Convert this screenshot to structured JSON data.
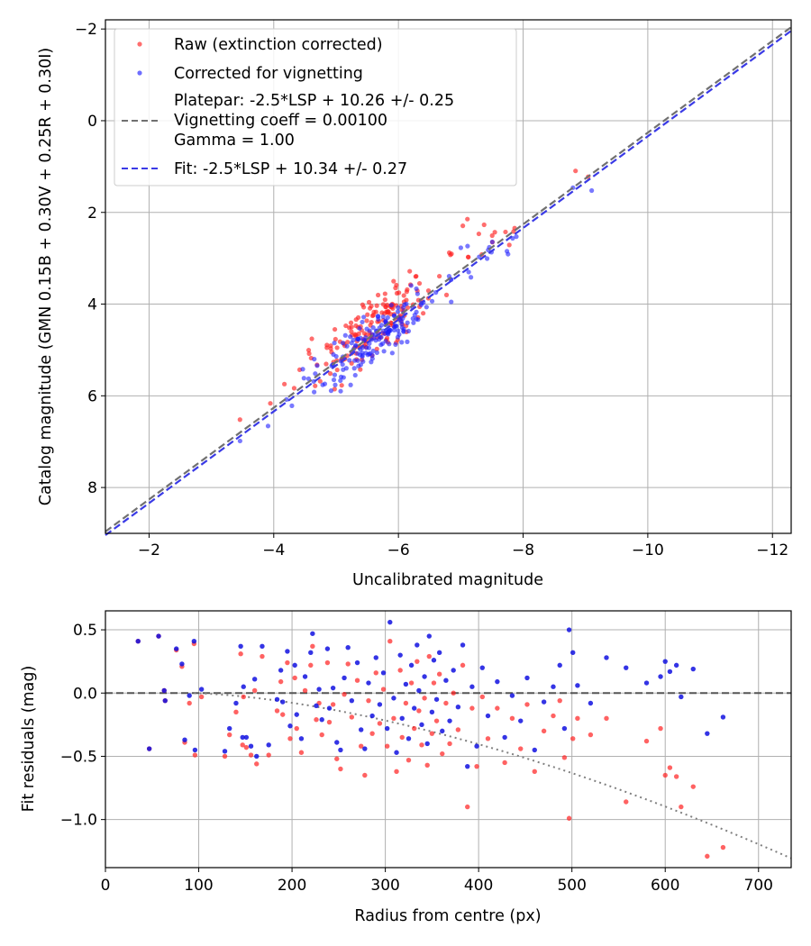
{
  "chart_data": [
    {
      "type": "scatter",
      "panel": "top",
      "xlabel": "Uncalibrated magnitude",
      "ylabel": "Catalog magnitude (GMN 0.15B + 0.30V + 0.25R + 0.30I)",
      "xlim": [
        -1.3,
        -12.3
      ],
      "ylim": [
        9.0,
        -2.2
      ],
      "x_ticks": [
        -2,
        -4,
        -6,
        -8,
        -10,
        -12
      ],
      "x_tick_labels": [
        "−2",
        "−4",
        "−6",
        "−8",
        "−10",
        "−12"
      ],
      "y_ticks": [
        -2,
        0,
        2,
        4,
        6,
        8
      ],
      "y_tick_labels": [
        "−2",
        "0",
        "2",
        "4",
        "6",
        "8"
      ],
      "grid": true,
      "legend_position": "top-left",
      "legend": {
        "raw": "Raw (extinction corrected)",
        "corrected": "Corrected for vignetting",
        "platepar_lines": [
          "Platepar: -2.5*LSP + 10.26 +/- 0.25",
          "Vignetting coeff = 0.00100",
          "Gamma = 1.00"
        ],
        "fit": "Fit: -2.5*LSP + 10.34 +/- 0.27"
      },
      "lines": [
        {
          "name": "platepar",
          "slope_lsp": -2.5,
          "zero_point": 10.26,
          "color": "#707070",
          "style": "dashed"
        },
        {
          "name": "fit",
          "slope_lsp": -2.5,
          "zero_point": 10.34,
          "color": "#3a3ae6",
          "style": "dashed"
        }
      ],
      "series": [
        {
          "name": "Raw (extinction corrected)",
          "color": "#ff2020",
          "note": "points generated from residual relation"
        },
        {
          "name": "Corrected for vignetting",
          "color": "#2020ff"
        }
      ]
    },
    {
      "type": "scatter",
      "panel": "bottom",
      "xlabel": "Radius from centre (px)",
      "ylabel": "Fit residuals (mag)",
      "xlim": [
        0,
        735
      ],
      "ylim": [
        -1.38,
        0.65
      ],
      "x_ticks": [
        0,
        100,
        200,
        300,
        400,
        500,
        600,
        700
      ],
      "x_tick_labels": [
        "0",
        "100",
        "200",
        "300",
        "400",
        "500",
        "600",
        "700"
      ],
      "y_ticks": [
        0.5,
        0.0,
        -0.5,
        -1.0
      ],
      "y_tick_labels": [
        "0.5",
        "0.0",
        "−0.5",
        "−1.0"
      ],
      "grid": true,
      "zero_line": 0.0,
      "vignetting_curve": {
        "coeff": 0.001,
        "color": "#808080",
        "style": "dotted"
      },
      "series": [
        {
          "name": "Raw",
          "color": "#ff2020"
        },
        {
          "name": "Corrected",
          "color": "#1010e0"
        }
      ],
      "corrected_points": [
        [
          35,
          0.41
        ],
        [
          47,
          -0.44
        ],
        [
          57,
          0.45
        ],
        [
          63,
          0.02
        ],
        [
          64,
          -0.06
        ],
        [
          76,
          0.35
        ],
        [
          82,
          0.23
        ],
        [
          85,
          -0.37
        ],
        [
          90,
          -0.02
        ],
        [
          95,
          0.41
        ],
        [
          96,
          -0.45
        ],
        [
          103,
          0.03
        ],
        [
          128,
          -0.46
        ],
        [
          133,
          -0.28
        ],
        [
          140,
          -0.08
        ],
        [
          145,
          0.37
        ],
        [
          147,
          -0.35
        ],
        [
          148,
          0.05
        ],
        [
          151,
          -0.35
        ],
        [
          156,
          -0.42
        ],
        [
          160,
          0.11
        ],
        [
          162,
          -0.5
        ],
        [
          168,
          0.37
        ],
        [
          175,
          -0.41
        ],
        [
          184,
          -0.05
        ],
        [
          188,
          0.18
        ],
        [
          190,
          -0.07
        ],
        [
          195,
          0.33
        ],
        [
          198,
          -0.26
        ],
        [
          203,
          0.22
        ],
        [
          205,
          -0.17
        ],
        [
          210,
          -0.36
        ],
        [
          214,
          0.13
        ],
        [
          220,
          0.32
        ],
        [
          222,
          0.47
        ],
        [
          226,
          -0.1
        ],
        [
          229,
          0.03
        ],
        [
          232,
          -0.21
        ],
        [
          238,
          0.35
        ],
        [
          240,
          -0.12
        ],
        [
          244,
          0.04
        ],
        [
          248,
          -0.39
        ],
        [
          252,
          -0.45
        ],
        [
          256,
          0.12
        ],
        [
          260,
          0.36
        ],
        [
          264,
          -0.06
        ],
        [
          270,
          0.24
        ],
        [
          274,
          -0.29
        ],
        [
          278,
          -0.44
        ],
        [
          282,
          0.08
        ],
        [
          286,
          -0.18
        ],
        [
          290,
          0.28
        ],
        [
          294,
          -0.09
        ],
        [
          298,
          0.16
        ],
        [
          302,
          -0.28
        ],
        [
          305,
          0.56
        ],
        [
          309,
          -0.04
        ],
        [
          312,
          -0.47
        ],
        [
          316,
          0.3
        ],
        [
          318,
          -0.2
        ],
        [
          322,
          0.07
        ],
        [
          325,
          -0.36
        ],
        [
          328,
          0.22
        ],
        [
          331,
          -0.12
        ],
        [
          334,
          0.38
        ],
        [
          336,
          0.02
        ],
        [
          339,
          -0.25
        ],
        [
          342,
          0.13
        ],
        [
          345,
          -0.4
        ],
        [
          347,
          0.45
        ],
        [
          350,
          -0.15
        ],
        [
          352,
          0.26
        ],
        [
          355,
          -0.05
        ],
        [
          358,
          0.32
        ],
        [
          361,
          -0.3
        ],
        [
          365,
          0.1
        ],
        [
          369,
          -0.22
        ],
        [
          373,
          0.18
        ],
        [
          378,
          -0.11
        ],
        [
          383,
          0.38
        ],
        [
          388,
          -0.58
        ],
        [
          393,
          0.05
        ],
        [
          398,
          -0.42
        ],
        [
          404,
          0.2
        ],
        [
          410,
          -0.18
        ],
        [
          420,
          0.09
        ],
        [
          428,
          -0.35
        ],
        [
          436,
          -0.02
        ],
        [
          445,
          -0.22
        ],
        [
          452,
          0.12
        ],
        [
          460,
          -0.45
        ],
        [
          470,
          -0.07
        ],
        [
          480,
          0.05
        ],
        [
          487,
          0.22
        ],
        [
          492,
          -0.28
        ],
        [
          497,
          0.5
        ],
        [
          501,
          0.32
        ],
        [
          506,
          0.06
        ],
        [
          520,
          -0.08
        ],
        [
          537,
          0.28
        ],
        [
          558,
          0.2
        ],
        [
          580,
          0.08
        ],
        [
          595,
          0.13
        ],
        [
          600,
          0.25
        ],
        [
          605,
          0.17
        ],
        [
          612,
          0.22
        ],
        [
          617,
          -0.03
        ],
        [
          630,
          0.19
        ],
        [
          645,
          -0.32
        ],
        [
          662,
          -0.19
        ]
      ],
      "raw_points": [
        [
          35,
          0.41
        ],
        [
          47,
          -0.44
        ],
        [
          57,
          0.45
        ],
        [
          63,
          0.02
        ],
        [
          64,
          -0.06
        ],
        [
          76,
          0.34
        ],
        [
          82,
          0.21
        ],
        [
          85,
          -0.39
        ],
        [
          90,
          -0.08
        ],
        [
          95,
          0.39
        ],
        [
          96,
          -0.49
        ],
        [
          103,
          -0.03
        ],
        [
          128,
          -0.5
        ],
        [
          133,
          -0.33
        ],
        [
          140,
          -0.15
        ],
        [
          145,
          0.31
        ],
        [
          147,
          -0.41
        ],
        [
          148,
          -0.03
        ],
        [
          151,
          -0.43
        ],
        [
          156,
          -0.49
        ],
        [
          160,
          0.02
        ],
        [
          162,
          -0.56
        ],
        [
          168,
          0.29
        ],
        [
          175,
          -0.49
        ],
        [
          184,
          -0.14
        ],
        [
          188,
          0.09
        ],
        [
          190,
          -0.17
        ],
        [
          195,
          0.24
        ],
        [
          198,
          -0.36
        ],
        [
          203,
          0.12
        ],
        [
          205,
          -0.28
        ],
        [
          210,
          -0.47
        ],
        [
          214,
          0.02
        ],
        [
          220,
          0.22
        ],
        [
          222,
          0.37
        ],
        [
          226,
          -0.21
        ],
        [
          229,
          -0.08
        ],
        [
          232,
          -0.33
        ],
        [
          238,
          0.24
        ],
        [
          240,
          -0.23
        ],
        [
          244,
          -0.09
        ],
        [
          248,
          -0.52
        ],
        [
          252,
          -0.6
        ],
        [
          256,
          -0.01
        ],
        [
          260,
          0.23
        ],
        [
          264,
          -0.19
        ],
        [
          270,
          0.1
        ],
        [
          274,
          -0.42
        ],
        [
          278,
          -0.65
        ],
        [
          282,
          -0.06
        ],
        [
          286,
          -0.32
        ],
        [
          290,
          0.16
        ],
        [
          294,
          -0.24
        ],
        [
          298,
          0.03
        ],
        [
          302,
          -0.42
        ],
        [
          305,
          0.41
        ],
        [
          309,
          -0.2
        ],
        [
          312,
          -0.62
        ],
        [
          316,
          0.18
        ],
        [
          318,
          -0.35
        ],
        [
          322,
          -0.08
        ],
        [
          325,
          -0.53
        ],
        [
          328,
          0.08
        ],
        [
          331,
          -0.28
        ],
        [
          334,
          0.25
        ],
        [
          336,
          -0.14
        ],
        [
          339,
          -0.41
        ],
        [
          342,
          -0.04
        ],
        [
          345,
          -0.57
        ],
        [
          347,
          0.29
        ],
        [
          350,
          -0.32
        ],
        [
          352,
          0.08
        ],
        [
          355,
          -0.22
        ],
        [
          358,
          0.15
        ],
        [
          361,
          -0.48
        ],
        [
          365,
          -0.08
        ],
        [
          369,
          -0.4
        ],
        [
          373,
          0.0
        ],
        [
          378,
          -0.29
        ],
        [
          383,
          0.22
        ],
        [
          388,
          -0.9
        ],
        [
          393,
          -0.12
        ],
        [
          398,
          -0.58
        ],
        [
          404,
          -0.03
        ],
        [
          410,
          -0.36
        ],
        [
          420,
          -0.12
        ],
        [
          428,
          -0.55
        ],
        [
          436,
          -0.2
        ],
        [
          445,
          -0.44
        ],
        [
          452,
          -0.09
        ],
        [
          460,
          -0.62
        ],
        [
          470,
          -0.3
        ],
        [
          480,
          -0.18
        ],
        [
          487,
          -0.06
        ],
        [
          492,
          -0.51
        ],
        [
          497,
          -0.99
        ],
        [
          501,
          -0.36
        ],
        [
          506,
          -0.2
        ],
        [
          520,
          -0.33
        ],
        [
          537,
          -0.2
        ],
        [
          558,
          -0.86
        ],
        [
          580,
          -0.38
        ],
        [
          595,
          -0.28
        ],
        [
          600,
          -0.65
        ],
        [
          605,
          -0.59
        ],
        [
          612,
          -0.66
        ],
        [
          617,
          -0.9
        ],
        [
          630,
          -0.74
        ],
        [
          645,
          -1.29
        ],
        [
          662,
          -1.22
        ]
      ]
    }
  ]
}
